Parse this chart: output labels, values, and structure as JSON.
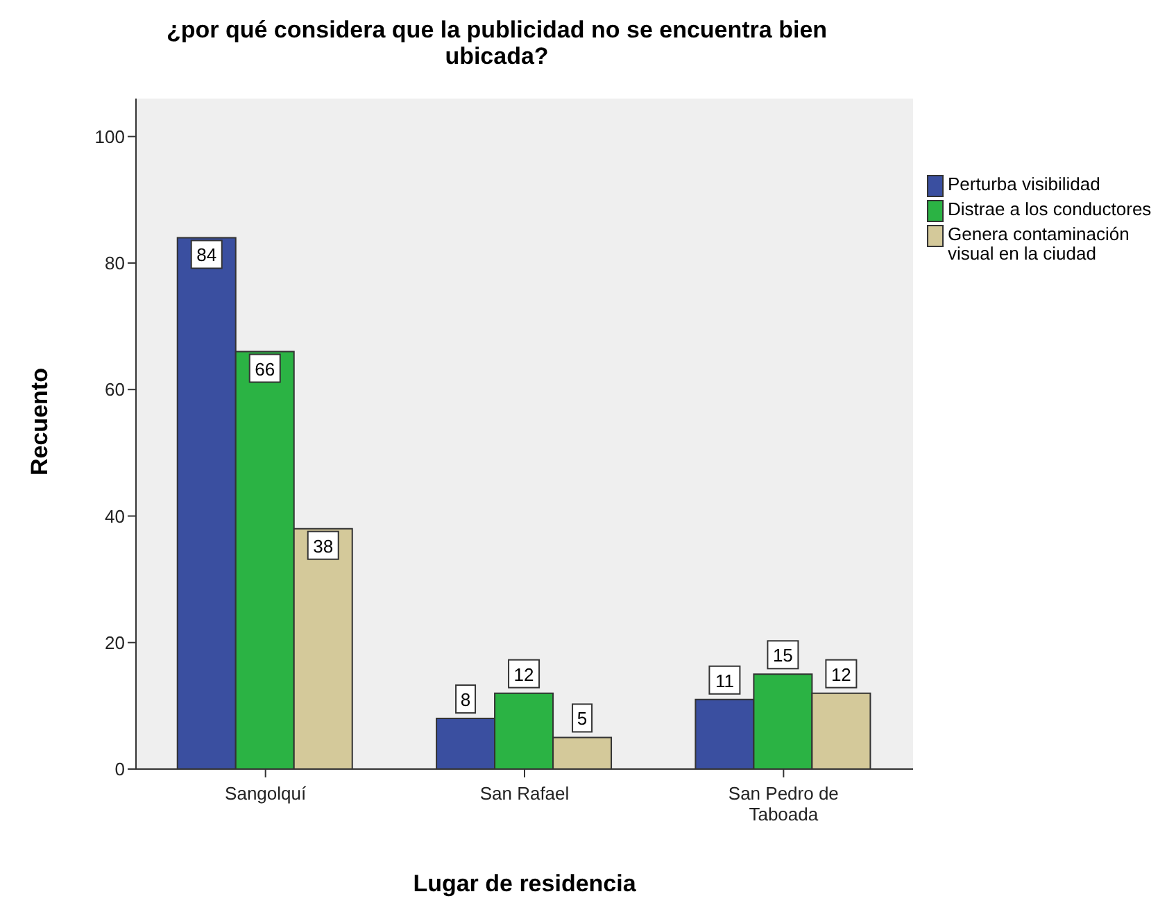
{
  "chart_data": {
    "type": "bar",
    "title": "¿por qué considera que la publicidad no se encuentra bien ubicada?",
    "xlabel": "Lugar de residencia",
    "ylabel": "Recuento",
    "categories": [
      "Sangolquí",
      "San Rafael",
      "San Pedro de Taboada"
    ],
    "series": [
      {
        "name": "Perturba visibilidad",
        "color": "#3a4fa0",
        "values": [
          84,
          8,
          11
        ]
      },
      {
        "name": "Distrae a los conductores",
        "color": "#2bb344",
        "values": [
          66,
          12,
          15
        ]
      },
      {
        "name": "Genera contaminación visual en la ciudad",
        "color": "#d4c99a",
        "values": [
          38,
          5,
          12
        ]
      }
    ],
    "ylim": [
      0,
      106
    ],
    "yticks": [
      0,
      20,
      40,
      60,
      80,
      100
    ],
    "grid": false,
    "legend": "right",
    "data_labels": true
  }
}
